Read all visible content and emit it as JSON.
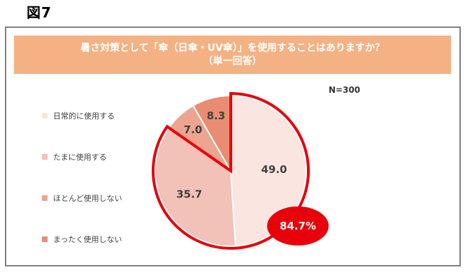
{
  "figure_label": "図7",
  "chart_data": {
    "type": "pie",
    "title_line1": "暑さ対策として「傘（日傘・UV傘）」を使用することはありますか？",
    "title_line2": "（単一回答）",
    "sample_size": "N=300",
    "categories": [
      "日常的に使用する",
      "たまに使用する",
      "ほとんど使用しない",
      "まったく使用しない"
    ],
    "values": [
      49.0,
      35.7,
      7.0,
      8.3
    ],
    "value_labels": [
      "49.0",
      "35.7",
      "7.0",
      "8.3"
    ],
    "colors": [
      "#fbe5e1",
      "#f2c1b7",
      "#eda490",
      "#e88d72"
    ],
    "callout": "84.7%",
    "callout_color": "#e8000b",
    "start_angle_deg": 0,
    "direction": "clockwise",
    "legend_position": "left"
  }
}
